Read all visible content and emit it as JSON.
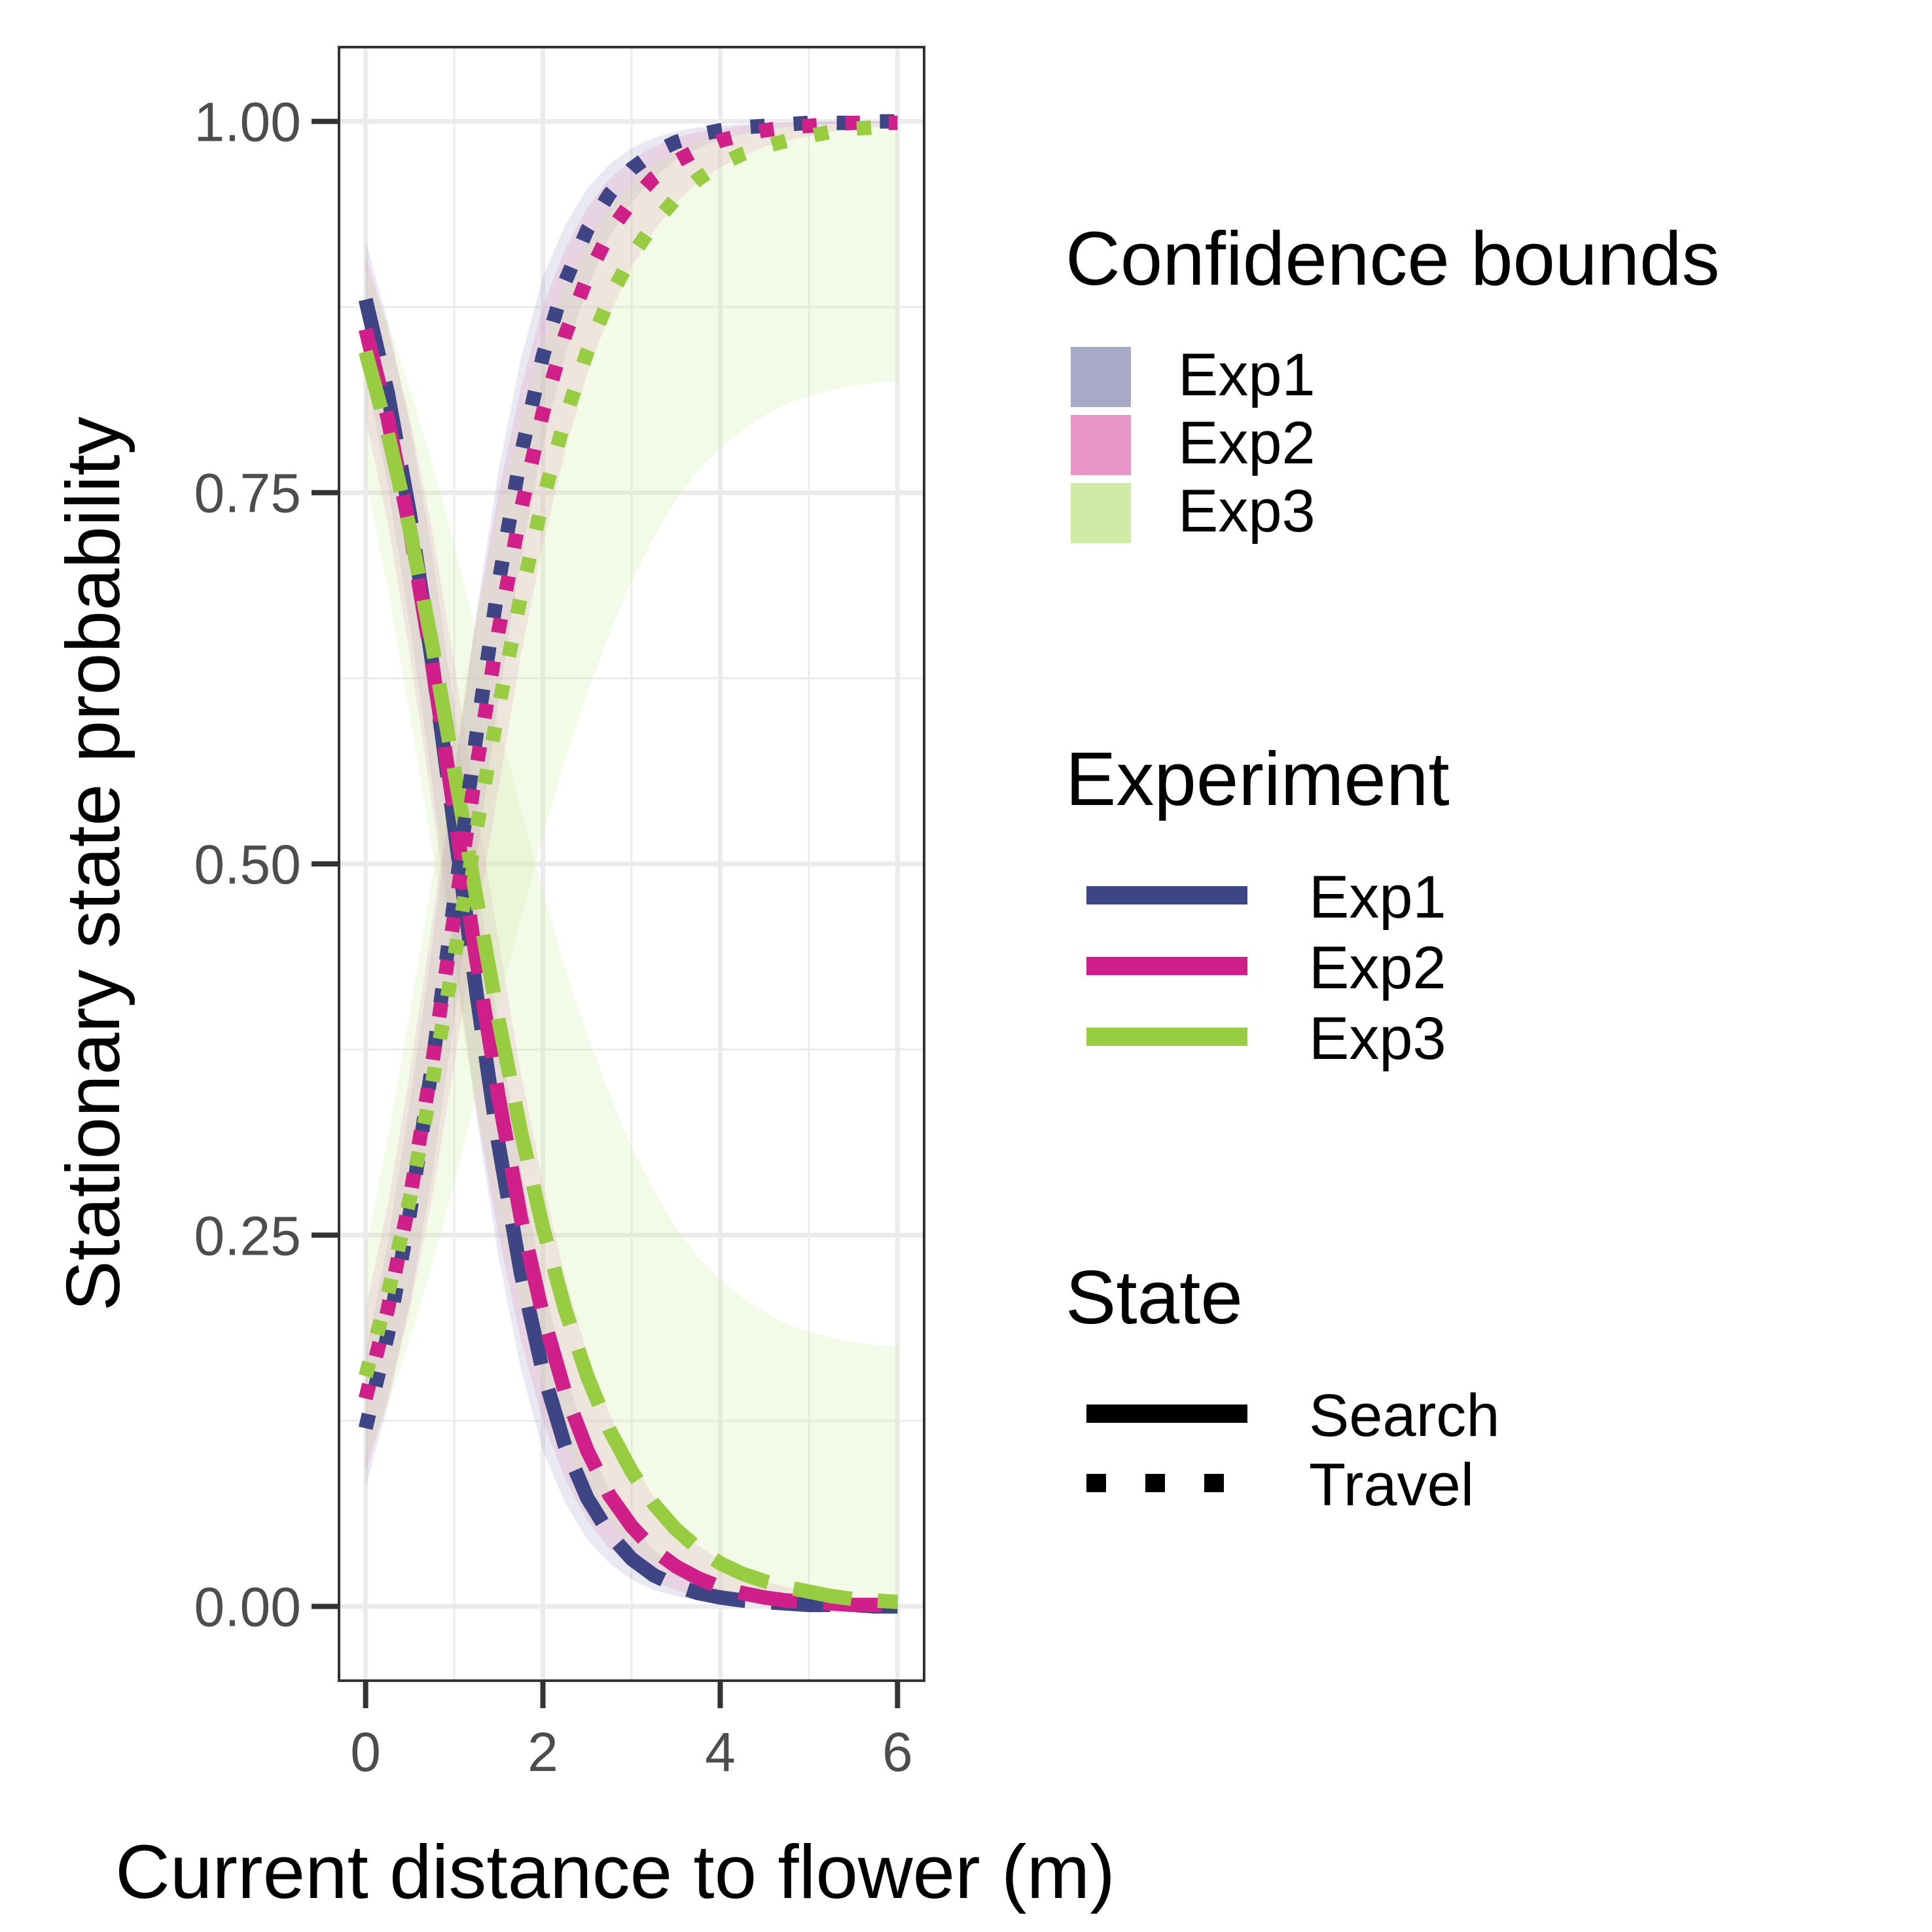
{
  "chart_data": {
    "type": "line",
    "title": "",
    "xlabel": "Current distance to flower (m)",
    "ylabel": "Stationary state probability",
    "xlim": [
      -0.3,
      6.3
    ],
    "ylim": [
      -0.05,
      1.05
    ],
    "x_ticks": [
      0,
      2,
      4,
      6
    ],
    "x_tick_labels": [
      "0",
      "2",
      "4",
      "6"
    ],
    "x_minor_gridlines": [
      1,
      3,
      5
    ],
    "y_ticks": [
      0,
      0.25,
      0.5,
      0.75,
      1
    ],
    "y_tick_labels": [
      "0.00",
      "0.25",
      "0.50",
      "0.75",
      "1.00"
    ],
    "y_minor_gridlines": [
      0.125,
      0.375,
      0.625,
      0.875
    ],
    "grid": true,
    "legend_position": "right",
    "legends": {
      "confidence": {
        "title": "Confidence bounds",
        "items": [
          {
            "label": "Exp1",
            "color": "#a7a9c7"
          },
          {
            "label": "Exp2",
            "color": "#e995c6"
          },
          {
            "label": "Exp3",
            "color": "#cfeca6"
          }
        ]
      },
      "experiment": {
        "title": "Experiment",
        "items": [
          {
            "label": "Exp1",
            "color": "#3d4585"
          },
          {
            "label": "Exp2",
            "color": "#d01f88"
          },
          {
            "label": "Exp3",
            "color": "#98cd42"
          }
        ]
      },
      "state": {
        "title": "State",
        "items": [
          {
            "label": "Search",
            "linetype": "longdash"
          },
          {
            "label": "Travel",
            "linetype": "dotted"
          }
        ]
      }
    },
    "x": [
      0,
      0.25,
      0.5,
      0.75,
      1,
      1.25,
      1.5,
      1.75,
      2,
      2.25,
      2.5,
      2.75,
      3,
      3.25,
      3.5,
      3.75,
      4,
      4.25,
      4.5,
      4.75,
      5,
      5.25,
      5.5,
      5.75,
      6
    ],
    "series": [
      {
        "name": "Exp1",
        "state": "Search",
        "color": "#3d4585",
        "values": [
          0.88,
          0.817,
          0.735,
          0.636,
          0.525,
          0.413,
          0.311,
          0.225,
          0.158,
          0.108,
          0.073,
          0.049,
          0.032,
          0.021,
          0.014,
          0.009,
          0.006,
          0.004,
          0.003,
          0.002,
          0.001,
          0.001,
          0.001,
          0.0,
          0.0
        ],
        "ci_lower": [
          0.83,
          0.755,
          0.66,
          0.555,
          0.44,
          0.33,
          0.235,
          0.16,
          0.105,
          0.07,
          0.045,
          0.029,
          0.018,
          0.011,
          0.007,
          0.004,
          0.003,
          0.002,
          0.001,
          0.001,
          0.0,
          0.0,
          0.0,
          0.0,
          0.0
        ],
        "ci_upper": [
          0.92,
          0.865,
          0.795,
          0.71,
          0.605,
          0.495,
          0.39,
          0.295,
          0.218,
          0.158,
          0.112,
          0.078,
          0.055,
          0.038,
          0.026,
          0.018,
          0.012,
          0.009,
          0.006,
          0.004,
          0.003,
          0.002,
          0.002,
          0.001,
          0.001
        ]
      },
      {
        "name": "Exp2",
        "state": "Search",
        "color": "#d01f88",
        "values": [
          0.86,
          0.8,
          0.725,
          0.635,
          0.535,
          0.435,
          0.343,
          0.262,
          0.196,
          0.144,
          0.105,
          0.075,
          0.054,
          0.038,
          0.027,
          0.019,
          0.013,
          0.009,
          0.006,
          0.004,
          0.003,
          0.002,
          0.001,
          0.001,
          0.001
        ],
        "ci_lower": [
          0.8,
          0.73,
          0.64,
          0.54,
          0.435,
          0.335,
          0.25,
          0.18,
          0.125,
          0.086,
          0.058,
          0.039,
          0.026,
          0.017,
          0.011,
          0.007,
          0.005,
          0.003,
          0.002,
          0.001,
          0.001,
          0.0,
          0.0,
          0.0,
          0.0
        ],
        "ci_upper": [
          0.91,
          0.86,
          0.8,
          0.725,
          0.635,
          0.54,
          0.448,
          0.36,
          0.285,
          0.222,
          0.17,
          0.13,
          0.098,
          0.074,
          0.055,
          0.041,
          0.031,
          0.023,
          0.017,
          0.013,
          0.01,
          0.007,
          0.005,
          0.004,
          0.003
        ]
      },
      {
        "name": "Exp3",
        "state": "Search",
        "color": "#98cd42",
        "values": [
          0.845,
          0.79,
          0.725,
          0.648,
          0.563,
          0.477,
          0.395,
          0.32,
          0.255,
          0.2,
          0.155,
          0.119,
          0.091,
          0.069,
          0.052,
          0.039,
          0.029,
          0.022,
          0.017,
          0.013,
          0.01,
          0.007,
          0.005,
          0.004,
          0.003
        ],
        "ci_lower": [
          0.76,
          0.685,
          0.6,
          0.51,
          0.42,
          0.335,
          0.262,
          0.2,
          0.15,
          0.11,
          0.08,
          0.058,
          0.041,
          0.029,
          0.02,
          0.014,
          0.01,
          0.007,
          0.005,
          0.003,
          0.002,
          0.002,
          0.001,
          0.001,
          0.001
        ],
        "ci_upper": [
          0.9,
          0.865,
          0.82,
          0.77,
          0.715,
          0.655,
          0.595,
          0.537,
          0.482,
          0.43,
          0.385,
          0.345,
          0.31,
          0.28,
          0.255,
          0.235,
          0.22,
          0.208,
          0.198,
          0.19,
          0.185,
          0.181,
          0.178,
          0.176,
          0.175
        ]
      },
      {
        "name": "Exp1",
        "state": "Travel",
        "color": "#3d4585",
        "values": [
          0.12,
          0.183,
          0.265,
          0.364,
          0.475,
          0.587,
          0.689,
          0.775,
          0.842,
          0.892,
          0.927,
          0.951,
          0.968,
          0.979,
          0.986,
          0.991,
          0.994,
          0.996,
          0.997,
          0.998,
          0.999,
          0.999,
          0.999,
          1.0,
          1.0
        ],
        "ci_lower": [
          0.08,
          0.135,
          0.205,
          0.29,
          0.395,
          0.505,
          0.61,
          0.705,
          0.782,
          0.842,
          0.888,
          0.922,
          0.945,
          0.962,
          0.974,
          0.982,
          0.988,
          0.991,
          0.994,
          0.996,
          0.997,
          0.998,
          0.998,
          0.999,
          0.999
        ],
        "ci_upper": [
          0.17,
          0.245,
          0.34,
          0.445,
          0.56,
          0.67,
          0.765,
          0.84,
          0.895,
          0.93,
          0.955,
          0.971,
          0.982,
          0.989,
          0.993,
          0.996,
          0.997,
          0.998,
          0.999,
          0.999,
          1.0,
          1.0,
          1.0,
          1.0,
          1.0
        ]
      },
      {
        "name": "Exp2",
        "state": "Travel",
        "color": "#d01f88",
        "values": [
          0.14,
          0.2,
          0.275,
          0.365,
          0.465,
          0.565,
          0.657,
          0.738,
          0.804,
          0.856,
          0.895,
          0.925,
          0.946,
          0.962,
          0.973,
          0.981,
          0.987,
          0.991,
          0.994,
          0.996,
          0.997,
          0.998,
          0.999,
          0.999,
          0.999
        ],
        "ci_lower": [
          0.09,
          0.14,
          0.2,
          0.275,
          0.365,
          0.46,
          0.552,
          0.64,
          0.715,
          0.778,
          0.83,
          0.87,
          0.902,
          0.926,
          0.945,
          0.959,
          0.969,
          0.977,
          0.983,
          0.987,
          0.99,
          0.993,
          0.995,
          0.996,
          0.997
        ],
        "ci_upper": [
          0.2,
          0.27,
          0.36,
          0.46,
          0.565,
          0.665,
          0.75,
          0.82,
          0.875,
          0.914,
          0.942,
          0.961,
          0.974,
          0.983,
          0.989,
          0.993,
          0.995,
          0.997,
          0.998,
          0.999,
          0.999,
          1.0,
          1.0,
          1.0,
          1.0
        ]
      },
      {
        "name": "Exp3",
        "state": "Travel",
        "color": "#98cd42",
        "values": [
          0.155,
          0.21,
          0.275,
          0.352,
          0.437,
          0.523,
          0.605,
          0.68,
          0.745,
          0.8,
          0.845,
          0.881,
          0.909,
          0.931,
          0.948,
          0.961,
          0.971,
          0.978,
          0.983,
          0.987,
          0.99,
          0.993,
          0.995,
          0.996,
          0.997
        ],
        "ci_lower": [
          0.1,
          0.135,
          0.18,
          0.23,
          0.285,
          0.345,
          0.405,
          0.463,
          0.518,
          0.57,
          0.615,
          0.655,
          0.69,
          0.72,
          0.745,
          0.765,
          0.78,
          0.792,
          0.802,
          0.81,
          0.815,
          0.819,
          0.822,
          0.824,
          0.825
        ],
        "ci_upper": [
          0.24,
          0.315,
          0.4,
          0.49,
          0.58,
          0.665,
          0.738,
          0.8,
          0.85,
          0.89,
          0.92,
          0.942,
          0.959,
          0.971,
          0.98,
          0.986,
          0.99,
          0.993,
          0.995,
          0.997,
          0.998,
          0.998,
          0.999,
          0.999,
          0.999
        ]
      }
    ]
  }
}
